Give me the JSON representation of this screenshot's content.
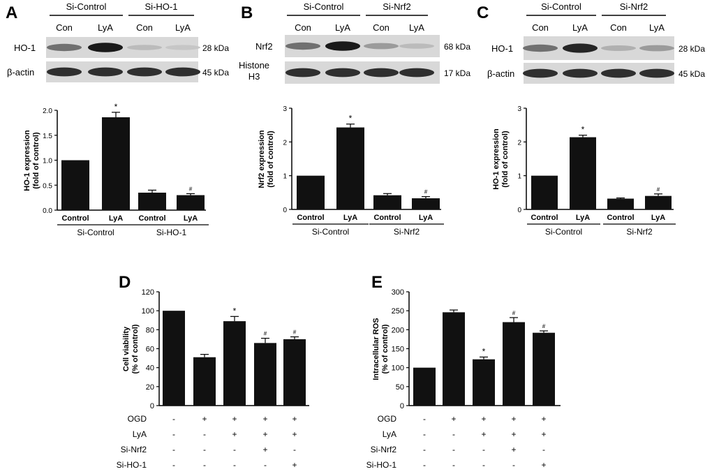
{
  "panel_labels": {
    "A": "A",
    "B": "B",
    "C": "C",
    "D": "D",
    "E": "E"
  },
  "blots": [
    {
      "groups": [
        "Si-Control",
        "Si-HO-1"
      ],
      "lanes": [
        "Con",
        "LyA",
        "Con",
        "LyA"
      ],
      "rows": [
        {
          "protein": "HO-1",
          "size": "28 kDa",
          "band_intensity": [
            0.55,
            0.95,
            0.2,
            0.15
          ]
        },
        {
          "protein": "β-actin",
          "size": "45 kDa",
          "band_intensity": [
            0.85,
            0.85,
            0.85,
            0.85
          ]
        }
      ]
    },
    {
      "groups": [
        "Si-Control",
        "Si-Nrf2"
      ],
      "lanes": [
        "Con",
        "LyA",
        "Con",
        "LyA"
      ],
      "rows": [
        {
          "protein": "Nrf2",
          "size": "68 kDa",
          "band_intensity": [
            0.55,
            0.95,
            0.35,
            0.2
          ]
        },
        {
          "protein": "Histone\nH3",
          "size": "17 kDa",
          "band_intensity": [
            0.85,
            0.85,
            0.85,
            0.85
          ]
        }
      ]
    },
    {
      "groups": [
        "Si-Control",
        "Si-Nrf2"
      ],
      "lanes": [
        "Con",
        "LyA",
        "Con",
        "LyA"
      ],
      "rows": [
        {
          "protein": "HO-1",
          "size": "28 kDa",
          "band_intensity": [
            0.55,
            0.9,
            0.25,
            0.35
          ]
        },
        {
          "protein": "β-actin",
          "size": "45 kDa",
          "band_intensity": [
            0.85,
            0.85,
            0.85,
            0.85
          ]
        }
      ]
    }
  ],
  "chart_data": [
    {
      "panel": "A",
      "type": "bar",
      "ylabel": "HO-1 expression\n(fold of control)",
      "ylim": [
        0,
        2.0
      ],
      "yticks": [
        "0.0",
        "0.5",
        "1.0",
        "1.5",
        "2.0"
      ],
      "categories": [
        "Control",
        "LyA",
        "Control",
        "LyA"
      ],
      "groups": [
        {
          "label": "Si-Control",
          "span": [
            0,
            1
          ]
        },
        {
          "label": "Si-HO-1",
          "span": [
            2,
            3
          ]
        }
      ],
      "values": [
        1.0,
        1.86,
        0.35,
        0.3
      ],
      "errors": [
        0,
        0.1,
        0.05,
        0.03
      ],
      "marks": [
        "",
        "*",
        "",
        "#"
      ]
    },
    {
      "panel": "B",
      "type": "bar",
      "ylabel": "Nrf2 expression\n(fold of control)",
      "ylim": [
        0,
        3
      ],
      "yticks": [
        "0",
        "1",
        "2",
        "3"
      ],
      "categories": [
        "Control",
        "LyA",
        "Control",
        "LyA"
      ],
      "groups": [
        {
          "label": "Si-Control",
          "span": [
            0,
            1
          ]
        },
        {
          "label": "Si-Nrf2",
          "span": [
            2,
            3
          ]
        }
      ],
      "values": [
        1.0,
        2.43,
        0.42,
        0.33
      ],
      "errors": [
        0,
        0.1,
        0.05,
        0.05
      ],
      "marks": [
        "",
        "*",
        "",
        "#"
      ]
    },
    {
      "panel": "C",
      "type": "bar",
      "ylabel": "HO-1 expression\n(fold of control)",
      "ylim": [
        0,
        3
      ],
      "yticks": [
        "0",
        "1",
        "2",
        "3"
      ],
      "categories": [
        "Control",
        "LyA",
        "Control",
        "LyA"
      ],
      "groups": [
        {
          "label": "Si-Control",
          "span": [
            0,
            1
          ]
        },
        {
          "label": "Si-Nrf2",
          "span": [
            2,
            3
          ]
        }
      ],
      "values": [
        1.0,
        2.14,
        0.32,
        0.4
      ],
      "errors": [
        0,
        0.06,
        0.02,
        0.06
      ],
      "marks": [
        "",
        "*",
        "",
        "#"
      ]
    },
    {
      "panel": "D",
      "type": "bar",
      "ylabel": "Cell viability\n(%  of control)",
      "ylim": [
        0,
        120
      ],
      "yticks": [
        "0",
        "20",
        "40",
        "60",
        "80",
        "100",
        "120"
      ],
      "treatment_rows": [
        {
          "label": "OGD",
          "signs": [
            "-",
            "+",
            "+",
            "+",
            "+"
          ]
        },
        {
          "label": "LyA",
          "signs": [
            "-",
            "-",
            "+",
            "+",
            "+"
          ]
        },
        {
          "label": "Si-Nrf2",
          "signs": [
            "-",
            "-",
            "-",
            "+",
            "-"
          ]
        },
        {
          "label": "Si-HO-1",
          "signs": [
            "-",
            "-",
            "-",
            "-",
            "+"
          ]
        }
      ],
      "values": [
        100,
        51,
        89,
        66,
        70
      ],
      "errors": [
        0,
        3,
        5,
        5,
        2.5
      ],
      "marks": [
        "",
        "",
        "*",
        "#",
        "#"
      ]
    },
    {
      "panel": "E",
      "type": "bar",
      "ylabel": "Intracellular ROS\n(% of control)",
      "ylim": [
        0,
        300
      ],
      "yticks": [
        "0",
        "50",
        "100",
        "150",
        "200",
        "250",
        "300"
      ],
      "treatment_rows": [
        {
          "label": "OGD",
          "signs": [
            "-",
            "+",
            "+",
            "+",
            "+"
          ]
        },
        {
          "label": "LyA",
          "signs": [
            "-",
            "-",
            "+",
            "+",
            "+"
          ]
        },
        {
          "label": "Si-Nrf2",
          "signs": [
            "-",
            "-",
            "-",
            "+",
            "-"
          ]
        },
        {
          "label": "Si-HO-1",
          "signs": [
            "-",
            "-",
            "-",
            "-",
            "+"
          ]
        }
      ],
      "values": [
        100,
        246,
        122,
        220,
        192
      ],
      "errors": [
        0,
        6,
        6,
        12,
        5
      ],
      "marks": [
        "",
        "",
        "*",
        "#",
        "#"
      ]
    }
  ]
}
